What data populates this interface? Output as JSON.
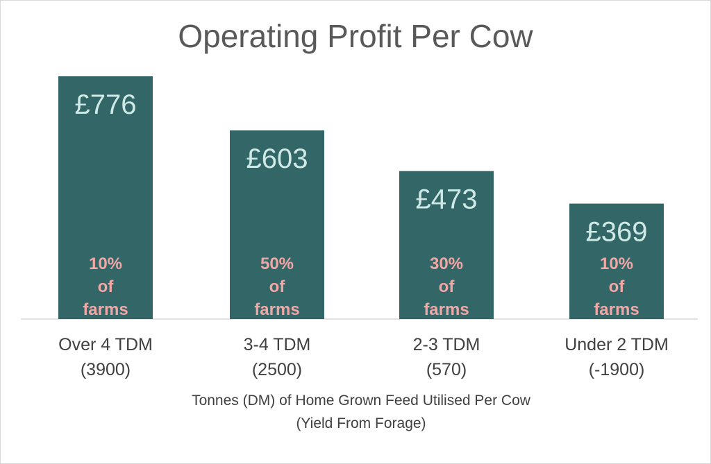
{
  "chart_data": {
    "type": "bar",
    "title": "Operating Profit Per Cow",
    "xlabel": [
      "Tonnes (DM) of Home Grown Feed Utilised Per Cow",
      "(Yield From Forage)"
    ],
    "ylabel": "",
    "categories": [
      [
        "Over 4 TDM",
        "(3900)"
      ],
      [
        "3-4  TDM",
        "(2500)"
      ],
      [
        "2-3 TDM",
        "(570)"
      ],
      [
        "Under 2 TDM",
        "(-1900)"
      ]
    ],
    "values": [
      776,
      603,
      473,
      369
    ],
    "value_labels": [
      "£776",
      "£603",
      "£473",
      "£369"
    ],
    "annotations": [
      [
        "10%",
        "of",
        "farms"
      ],
      [
        "50%",
        "of",
        "farms"
      ],
      [
        "30%",
        "of",
        "farms"
      ],
      [
        "10%",
        "of",
        "farms"
      ]
    ],
    "ylim": [
      0,
      1000
    ],
    "grid": false,
    "legend": "none",
    "colors": {
      "bar": "#336666",
      "value_label": "#cfe9e6",
      "annotation": "#f2a7a7",
      "title": "#595959",
      "axis_text": "#404040",
      "axis_line": "#d9d9d9"
    }
  }
}
